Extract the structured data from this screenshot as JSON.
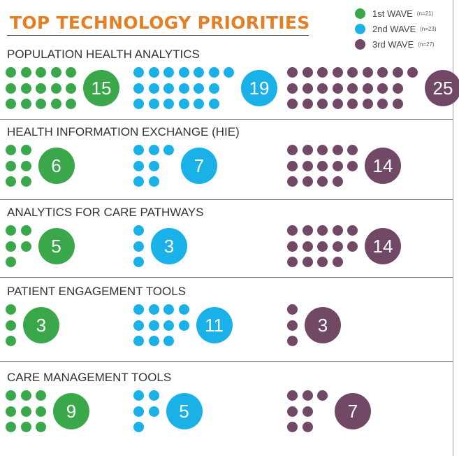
{
  "title": "TOP TECHNOLOGY PRIORITIES",
  "legend": [
    {
      "label": "1st WAVE",
      "n": "(n=21)",
      "color": "#3aa84a"
    },
    {
      "label": "2nd WAVE",
      "n": "(n=23)",
      "color": "#1ab0e8"
    },
    {
      "label": "3rd WAVE",
      "n": "(n=27)",
      "color": "#714866"
    }
  ],
  "chart_data": {
    "type": "pictogram",
    "title": "TOP TECHNOLOGY PRIORITIES",
    "categories": [
      "POPULATION HEALTH ANALYTICS",
      "HEALTH INFORMATION EXCHANGE (HIE)",
      "ANALYTICS FOR CARE PATHWAYS",
      "PATIENT ENGAGEMENT TOOLS",
      "CARE MANAGEMENT TOOLS"
    ],
    "series": [
      {
        "name": "1st WAVE",
        "values": [
          15,
          6,
          5,
          3,
          9
        ]
      },
      {
        "name": "2nd WAVE",
        "values": [
          19,
          7,
          3,
          11,
          5
        ]
      },
      {
        "name": "3rd WAVE",
        "values": [
          25,
          14,
          14,
          3,
          7
        ]
      }
    ],
    "legend_position": "top-right"
  }
}
